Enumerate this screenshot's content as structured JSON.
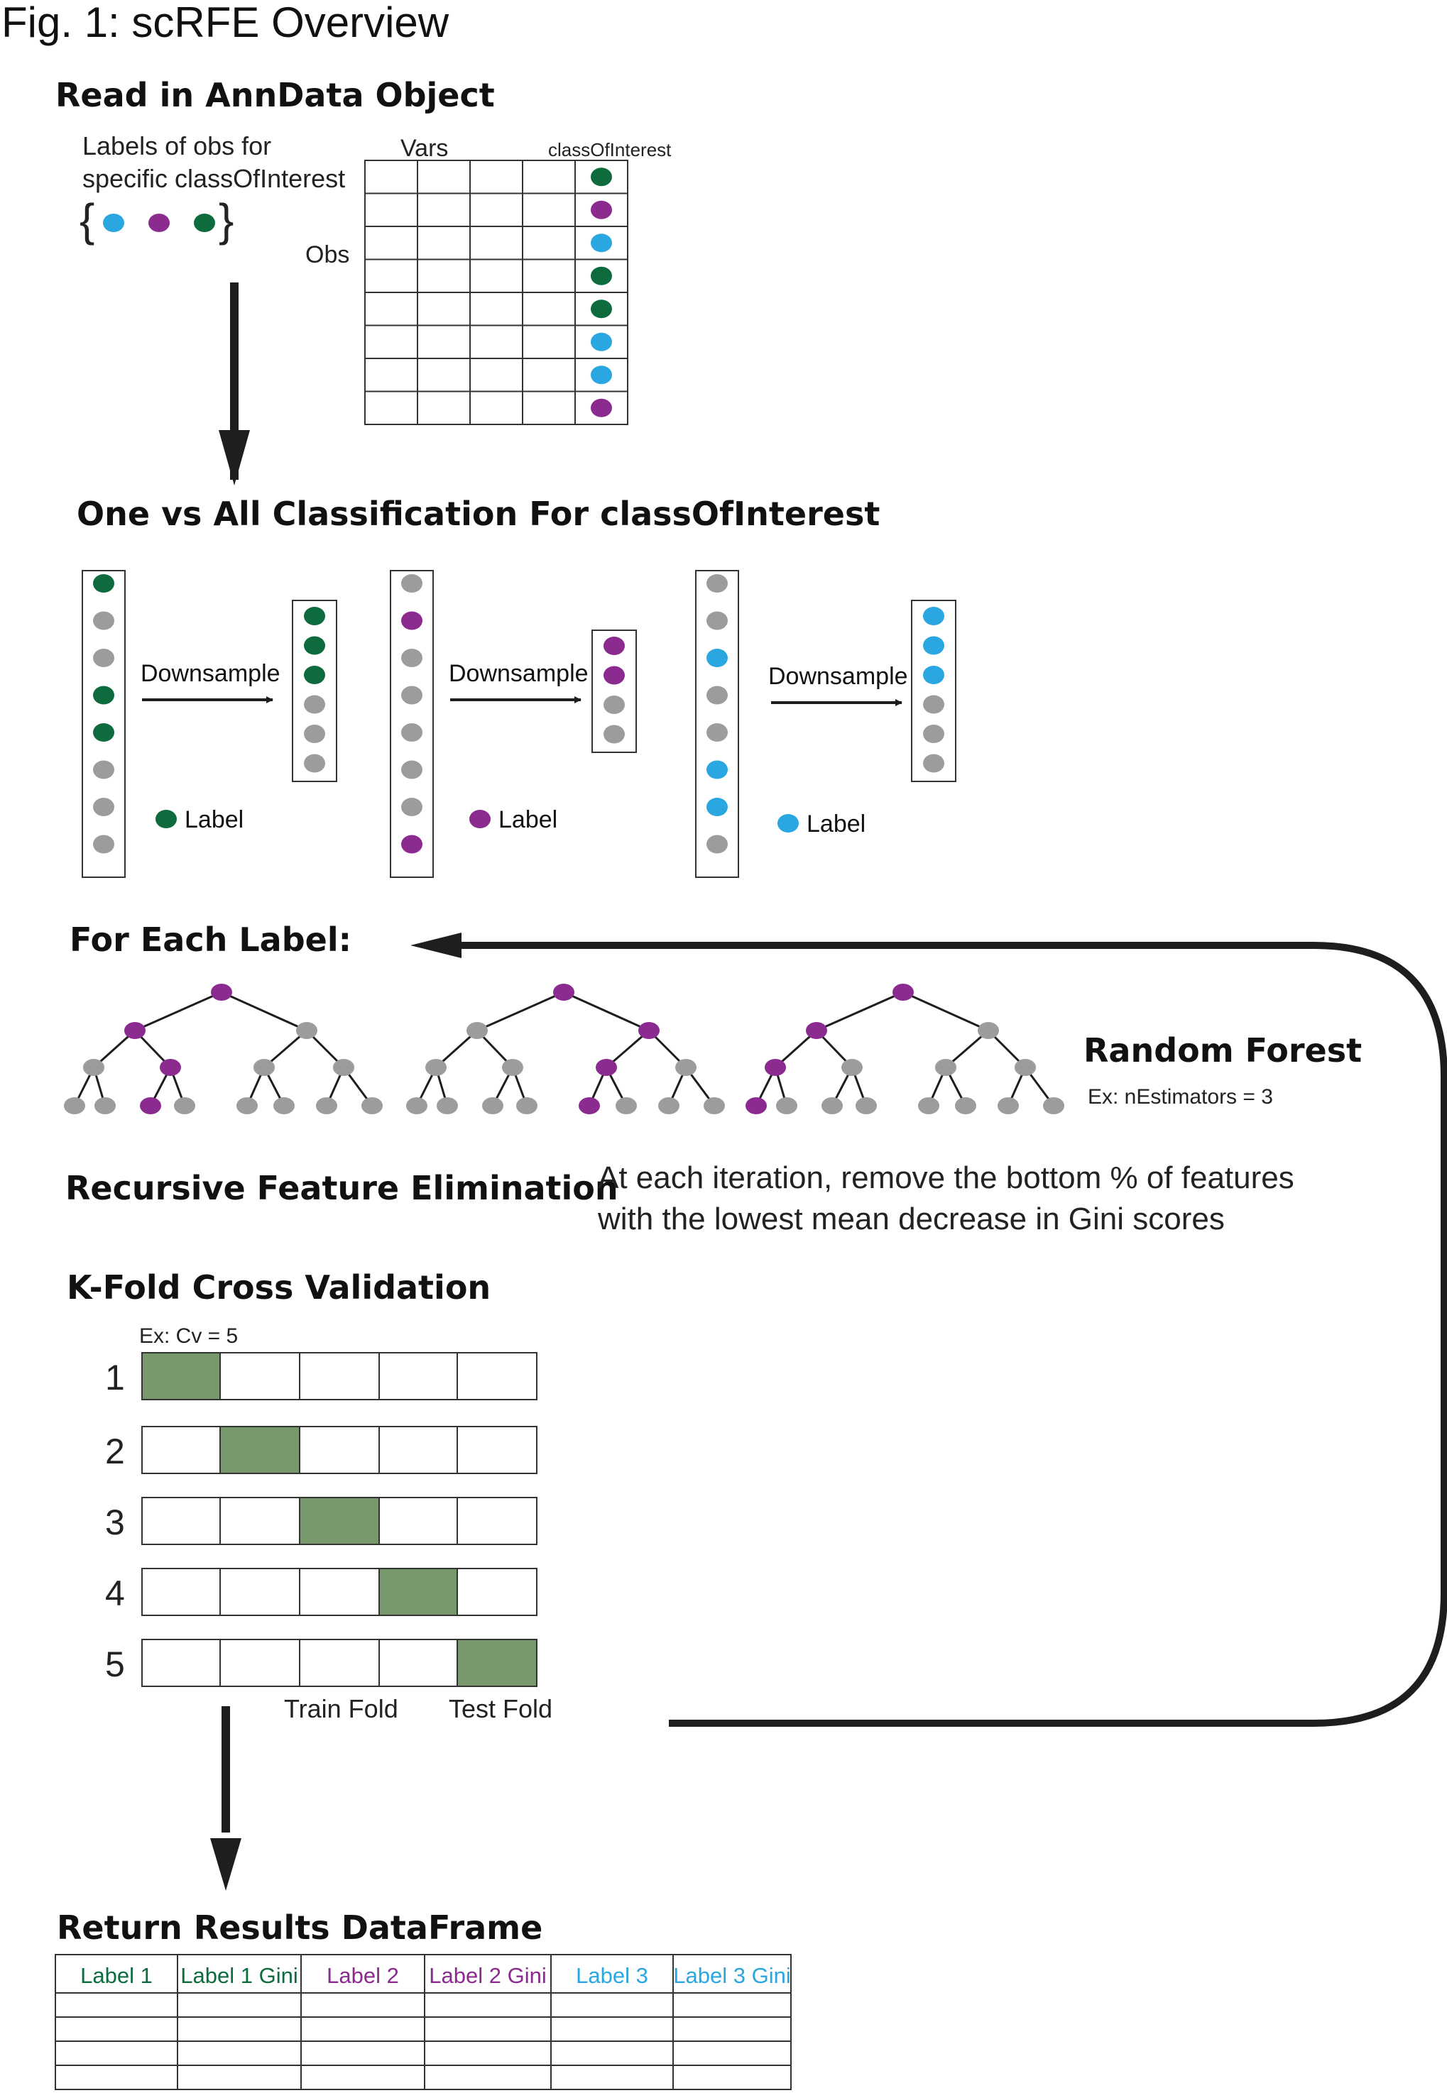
{
  "figure_title": "Fig. 1: scRFE Overview",
  "colors": {
    "green": "#0d6b3e",
    "purple": "#8b2b8f",
    "blue": "#2aa6e0",
    "gray": "#9c9c9c",
    "fold_fill": "#77996b",
    "line": "#1e1e1e"
  },
  "section_read": {
    "heading": "Read in AnnData Object",
    "labels_caption_1": "Labels of obs for",
    "labels_caption_2": "specific classOfInterest",
    "vars_label": "Vars",
    "class_label": "classOfInterest",
    "obs_label": "Obs",
    "brace_dots": [
      "blue",
      "purple",
      "green"
    ],
    "class_column": [
      "green",
      "purple",
      "blue",
      "green",
      "green",
      "blue",
      "blue",
      "purple"
    ]
  },
  "section_ova": {
    "heading": "One vs All Classification For classOfInterest",
    "downsample_label": "Downsample",
    "label_text": "Label",
    "groups": [
      {
        "color": "green",
        "full": [
          "green",
          "gray",
          "gray",
          "green",
          "green",
          "gray",
          "gray",
          "gray"
        ],
        "down": [
          "green",
          "green",
          "green",
          "gray",
          "gray",
          "gray"
        ]
      },
      {
        "color": "purple",
        "full": [
          "gray",
          "purple",
          "gray",
          "gray",
          "gray",
          "gray",
          "gray",
          "purple"
        ],
        "down": [
          "purple",
          "purple",
          "gray",
          "gray"
        ]
      },
      {
        "color": "blue",
        "full": [
          "gray",
          "gray",
          "blue",
          "gray",
          "gray",
          "blue",
          "blue",
          "gray"
        ],
        "down": [
          "blue",
          "blue",
          "blue",
          "gray",
          "gray",
          "gray"
        ]
      }
    ]
  },
  "section_label": {
    "heading": "For Each Label:",
    "forest_title": "Random Forest",
    "forest_example": "Ex: nEstimators = 3",
    "trees": [
      {
        "path": [
          "L",
          "R",
          "L"
        ]
      },
      {
        "path": [
          "R",
          "L",
          "L"
        ]
      },
      {
        "path": [
          "L",
          "L",
          "L"
        ]
      }
    ]
  },
  "section_rfe": {
    "heading": "Recursive Feature Elimination",
    "description_1": "At each iteration, remove the bottom % of features",
    "description_2": "with the lowest mean decrease in Gini scores"
  },
  "section_cv": {
    "heading": "K-Fold Cross Validation",
    "example": "Ex: Cv = 5",
    "rows": [
      "1",
      "2",
      "3",
      "4",
      "5"
    ],
    "train_label": "Train Fold",
    "test_label": "Test Fold"
  },
  "section_results": {
    "heading": "Return Results DataFrame",
    "columns": [
      {
        "label": "Label 1",
        "color": "green"
      },
      {
        "label": "Label 1 Gini",
        "color": "green"
      },
      {
        "label": "Label 2",
        "color": "purple"
      },
      {
        "label": "Label 2 Gini",
        "color": "purple"
      },
      {
        "label": "Label 3",
        "color": "blue"
      },
      {
        "label": "Label 3 Gini",
        "color": "blue"
      }
    ]
  }
}
